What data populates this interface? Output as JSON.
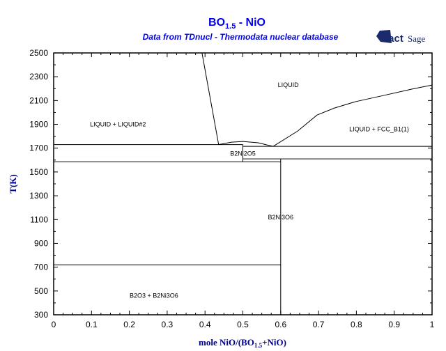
{
  "chart_data": {
    "type": "line",
    "title": "BO1.5 - NiO",
    "title_main": "BO",
    "title_sub": "1.5",
    "title_rest": " - NiO",
    "subtitle": "Data from TDnucl - Thermodata nuclear database",
    "logo": "FactSage",
    "xlabel": "mole NiO/(BO1.5+NiO)",
    "xlabel_parts": [
      "mole NiO/(BO",
      "1.5",
      "+NiO)"
    ],
    "ylabel": "T(K)",
    "xlim": [
      0,
      1
    ],
    "ylim": [
      300,
      2500
    ],
    "xticks": [
      "0",
      "0.1",
      "0.2",
      "0.3",
      "0.4",
      "0.5",
      "0.6",
      "0.7",
      "0.8",
      "0.9",
      "1"
    ],
    "yticks": [
      "300",
      "500",
      "700",
      "900",
      "1100",
      "1300",
      "1500",
      "1700",
      "1900",
      "2100",
      "2300",
      "2500"
    ],
    "series": [
      {
        "name": "liquidus-left",
        "points": [
          [
            0.392,
            2500
          ],
          [
            0.436,
            1730
          ]
        ]
      },
      {
        "name": "miscibility-line-1730",
        "points": [
          [
            0,
            1730
          ],
          [
            0.5,
            1730
          ]
        ]
      },
      {
        "name": "B2Ni2O5-dome",
        "points": [
          [
            0.436,
            1730
          ],
          [
            0.47,
            1750
          ],
          [
            0.5,
            1756
          ],
          [
            0.54,
            1745
          ],
          [
            0.58,
            1715
          ]
        ]
      },
      {
        "name": "liquidus-right",
        "points": [
          [
            0.58,
            1715
          ],
          [
            0.645,
            1844
          ],
          [
            0.696,
            1978
          ],
          [
            0.742,
            2037
          ],
          [
            0.797,
            2090
          ],
          [
            0.871,
            2142
          ],
          [
            0.945,
            2195
          ],
          [
            1,
            2230
          ]
        ]
      },
      {
        "name": "eutectic-1715",
        "points": [
          [
            0.5,
            1715
          ],
          [
            1,
            1715
          ]
        ]
      },
      {
        "name": "solidus-1610",
        "points": [
          [
            0.5,
            1610
          ],
          [
            1,
            1610
          ]
        ]
      },
      {
        "name": "peritectic-1585",
        "points": [
          [
            0,
            1585
          ],
          [
            0.6,
            1585
          ]
        ]
      },
      {
        "name": "B2Ni2O5-line",
        "points": [
          [
            0.5,
            1730
          ],
          [
            0.5,
            1585
          ]
        ]
      },
      {
        "name": "B2Ni3O6-line",
        "points": [
          [
            0.6,
            1610
          ],
          [
            0.6,
            300
          ]
        ]
      },
      {
        "name": "transition-720",
        "points": [
          [
            0,
            720
          ],
          [
            0.6,
            720
          ]
        ]
      }
    ],
    "annotations": [
      {
        "text": "LIQUID",
        "x": 0.62,
        "y": 2230
      },
      {
        "text": "LIQUID + LIQUID#2",
        "x": 0.17,
        "y": 1900
      },
      {
        "text": "LIQUID + FCC_B1(1)",
        "x": 0.86,
        "y": 1860
      },
      {
        "text": "B2Ni2O5",
        "x": 0.5,
        "y": 1655
      },
      {
        "text": "B2Ni3O6",
        "x": 0.6,
        "y": 1120
      },
      {
        "text": "B2O3 + B2Ni3O6",
        "x": 0.265,
        "y": 460
      }
    ]
  }
}
